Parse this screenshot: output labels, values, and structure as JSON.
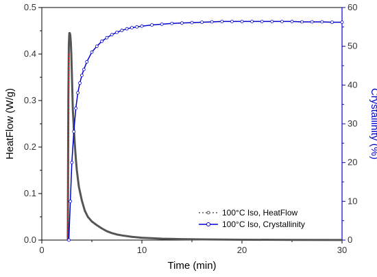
{
  "chart_data": {
    "type": "line",
    "xlabel": "Time (min)",
    "ylabel": "HeatFlow (W/g)",
    "y2label": "Crystallinity (%)",
    "xlim": [
      0,
      30
    ],
    "ylim": [
      0,
      0.5
    ],
    "y2lim": [
      0,
      60
    ],
    "xticks": [
      0,
      10,
      20,
      30
    ],
    "yticks": [
      0.0,
      0.1,
      0.2,
      0.3,
      0.4,
      0.5
    ],
    "y2ticks": [
      0,
      10,
      20,
      30,
      40,
      50,
      60
    ],
    "grid": false,
    "legend_position": "bottom-right",
    "colors": {
      "heatflow": "#555555",
      "crystallinity": "#0000cc",
      "onset": "#ff0000",
      "axis_left": "#000000",
      "axis_right": "#0000cc"
    },
    "series": [
      {
        "name": "100°C Iso, HeatFlow",
        "axis": "left",
        "x": [
          2.6,
          2.65,
          2.7,
          2.75,
          2.8,
          2.85,
          2.9,
          2.95,
          3.0,
          3.05,
          3.1,
          3.2,
          3.3,
          3.4,
          3.5,
          3.7,
          4.0,
          4.3,
          4.6,
          5.0,
          5.5,
          6.0,
          6.5,
          7.0,
          7.5,
          8.0,
          9.0,
          10.0,
          11.0,
          12.0,
          14.0,
          16.0,
          20.0,
          25.0,
          30.0
        ],
        "y": [
          0.0,
          0.3,
          0.42,
          0.445,
          0.445,
          0.44,
          0.425,
          0.4,
          0.36,
          0.32,
          0.28,
          0.24,
          0.205,
          0.175,
          0.15,
          0.115,
          0.085,
          0.063,
          0.05,
          0.04,
          0.032,
          0.025,
          0.019,
          0.015,
          0.012,
          0.01,
          0.007,
          0.005,
          0.004,
          0.003,
          0.002,
          0.0015,
          0.0008,
          0.0004,
          0.0002
        ]
      },
      {
        "name": "100°C Iso, Crystallinity",
        "axis": "right",
        "x": [
          2.7,
          2.85,
          3.0,
          3.2,
          3.4,
          3.6,
          3.8,
          4.0,
          4.2,
          4.5,
          5.0,
          5.5,
          6.0,
          6.5,
          7.0,
          7.5,
          8.0,
          8.5,
          9.0,
          9.5,
          10.0,
          11.0,
          12.0,
          13.0,
          14.0,
          15.0,
          16.0,
          17.0,
          18.0,
          19.0,
          20.0,
          21.0,
          22.0,
          23.0,
          24.0,
          25.0,
          26.0,
          27.0,
          28.0,
          29.0,
          30.0
        ],
        "y": [
          0,
          10,
          20,
          28,
          34,
          38,
          40.5,
          42.5,
          44,
          46,
          48.5,
          50,
          51.3,
          52.2,
          53,
          53.6,
          54.1,
          54.5,
          54.8,
          55.0,
          55.2,
          55.5,
          55.7,
          55.9,
          56.0,
          56.1,
          56.2,
          56.3,
          56.4,
          56.4,
          56.4,
          56.4,
          56.4,
          56.4,
          56.4,
          56.4,
          56.3,
          56.3,
          56.3,
          56.2,
          56.2
        ]
      },
      {
        "name": "",
        "axis": "left",
        "role": "onset",
        "x": [
          2.6,
          2.68
        ],
        "y": [
          0.0,
          0.4
        ]
      }
    ]
  }
}
